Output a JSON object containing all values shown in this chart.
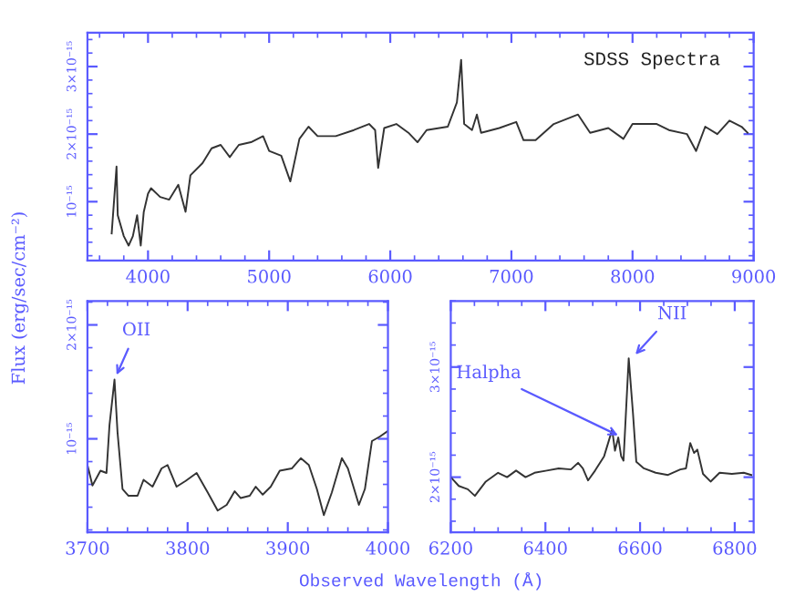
{
  "chart_data": [
    {
      "type": "line",
      "title": "SDSS Spectra",
      "ylabel": "Flux (erg/sec/cm⁻²)",
      "x": [
        3700,
        3740,
        3750,
        3800,
        3840,
        3875,
        3910,
        3940,
        3965,
        4000,
        4025,
        4100,
        4175,
        4250,
        4310,
        4350,
        4450,
        4525,
        4600,
        4675,
        4750,
        4850,
        4950,
        5000,
        5100,
        5175,
        5250,
        5325,
        5400,
        5550,
        5700,
        5825,
        5875,
        5900,
        5950,
        6050,
        6150,
        6225,
        6300,
        6475,
        6550,
        6585,
        6610,
        6675,
        6715,
        6750,
        6900,
        7040,
        7100,
        7200,
        7350,
        7550,
        7650,
        7800,
        7925,
        8000,
        8200,
        8300,
        8450,
        8525,
        8600,
        8700,
        8800,
        8900,
        8950
      ],
      "series": [
        {
          "color": "#333333",
          "values": [
            5.3e-16,
            1.52e-15,
            8e-16,
            4.9e-16,
            3.5e-16,
            4.9e-16,
            8e-16,
            3.5e-16,
            8.5e-16,
            1.12e-15,
            1.2e-15,
            1.07e-15,
            1.03e-15,
            1.25e-15,
            8.5e-16,
            1.39e-15,
            1.57e-15,
            1.79e-15,
            1.84e-15,
            1.66e-15,
            1.84e-15,
            1.88e-15,
            1.97e-15,
            1.75e-15,
            1.68e-15,
            1.3e-15,
            1.93e-15,
            2.11e-15,
            1.97e-15,
            1.97e-15,
            2.06e-15,
            2.15e-15,
            2.06e-15,
            1.5e-15,
            2.09e-15,
            2.15e-15,
            2.02e-15,
            1.88e-15,
            2.06e-15,
            2.11e-15,
            2.47e-15,
            3.1e-15,
            2.15e-15,
            2.06e-15,
            2.29e-15,
            2.02e-15,
            2.09e-15,
            2.18e-15,
            1.91e-15,
            1.91e-15,
            2.15e-15,
            2.29e-15,
            2.02e-15,
            2.09e-15,
            1.93e-15,
            2.15e-15,
            2.15e-15,
            2.06e-15,
            2e-15,
            1.75e-15,
            2.11e-15,
            2e-15,
            2.2e-15,
            2.11e-15,
            2.02e-15
          ]
        }
      ],
      "xlim": [
        3500,
        9000
      ],
      "xticks": [
        4000,
        5000,
        6000,
        7000,
        8000,
        9000
      ],
      "ylim": [
        1.3e-16,
        3.5e-15
      ],
      "yticks": [
        {
          "value": 1e-15,
          "label": "10⁻¹⁵"
        },
        {
          "value": 2e-15,
          "label": "2×10⁻¹⁵"
        },
        {
          "value": 3e-15,
          "label": "3×10⁻¹⁵"
        }
      ]
    },
    {
      "type": "line",
      "xlabel": "Observed Wavelength (Å)",
      "x": [
        3700,
        3705,
        3713,
        3719,
        3722,
        3727,
        3730,
        3735,
        3741,
        3750,
        3756,
        3765,
        3774,
        3780,
        3789,
        3798,
        3809,
        3820,
        3830,
        3839,
        3847,
        3853,
        3862,
        3868,
        3875,
        3883,
        3892,
        3904,
        3913,
        3921,
        3929,
        3936,
        3944,
        3954,
        3960,
        3971,
        3977,
        3984,
        3992,
        4000
      ],
      "series": [
        {
          "color": "#333333",
          "values": [
            7.7e-16,
            5.9e-16,
            7.2e-16,
            7e-16,
            1.12e-15,
            1.52e-15,
            1.06e-15,
            5.6e-16,
            5e-16,
            5e-16,
            6.4e-16,
            5.8e-16,
            7.4e-16,
            7.7e-16,
            5.8e-16,
            6.3e-16,
            7e-16,
            5.3e-16,
            3.7e-16,
            4.2e-16,
            5.4e-16,
            4.8e-16,
            5e-16,
            5.8e-16,
            5.1e-16,
            5.8e-16,
            7.2e-16,
            7.4e-16,
            8.3e-16,
            7.7e-16,
            5.6e-16,
            3.3e-16,
            5.3e-16,
            8.3e-16,
            7.4e-16,
            4.2e-16,
            5.6e-16,
            9.8e-16,
            1.02e-15,
            1.07e-15
          ]
        }
      ],
      "xlim": [
        3700,
        4000
      ],
      "xticks": [
        3700,
        3800,
        3900,
        4000
      ],
      "ylim": [
        1.8e-16,
        2.21e-15
      ],
      "yticks": [
        {
          "value": 1e-15,
          "label": "10⁻¹⁵"
        },
        {
          "value": 2e-15,
          "label": "2×10⁻¹⁵"
        }
      ],
      "annotations": [
        {
          "text": "OII",
          "x": 3727,
          "y": 1.52e-15
        }
      ]
    },
    {
      "type": "line",
      "x": [
        6200,
        6217,
        6236,
        6251,
        6274,
        6300,
        6319,
        6338,
        6358,
        6377,
        6403,
        6428,
        6454,
        6469,
        6479,
        6490,
        6505,
        6524,
        6541,
        6547,
        6554,
        6560,
        6565,
        6576,
        6585,
        6592,
        6608,
        6633,
        6659,
        6685,
        6697,
        6706,
        6714,
        6721,
        6733,
        6749,
        6768,
        6794,
        6819,
        6835
      ],
      "series": [
        {
          "color": "#333333",
          "values": [
            2e-15,
            1.92e-15,
            1.89e-15,
            1.83e-15,
            1.96e-15,
            2.04e-15,
            2e-15,
            2.06e-15,
            2e-15,
            2.04e-15,
            2.06e-15,
            2.08e-15,
            2.07e-15,
            2.13e-15,
            2.08e-15,
            1.97e-15,
            2.06e-15,
            2.19e-15,
            2.43e-15,
            2.24e-15,
            2.36e-15,
            2.19e-15,
            2.15e-15,
            3.08e-15,
            2.58e-15,
            2.14e-15,
            2.08e-15,
            2.04e-15,
            2.02e-15,
            2.07e-15,
            2.08e-15,
            2.31e-15,
            2.22e-15,
            2.25e-15,
            2.03e-15,
            1.96e-15,
            2.04e-15,
            2.03e-15,
            2.04e-15,
            2.02e-15
          ]
        }
      ],
      "xlim": [
        6200,
        6840
      ],
      "xticks": [
        6200,
        6400,
        6600,
        6800
      ],
      "ylim": [
        1.5e-15,
        3.6e-15
      ],
      "yticks": [
        {
          "value": 2e-15,
          "label": "2×10⁻¹⁵"
        },
        {
          "value": 3e-15,
          "label": "3×10⁻¹⁵"
        }
      ],
      "annotations": [
        {
          "text": "Halpha",
          "x": 6563,
          "y": 2.36e-15
        },
        {
          "text": "NII",
          "x": 6583,
          "y": 3.08e-15
        }
      ]
    }
  ]
}
